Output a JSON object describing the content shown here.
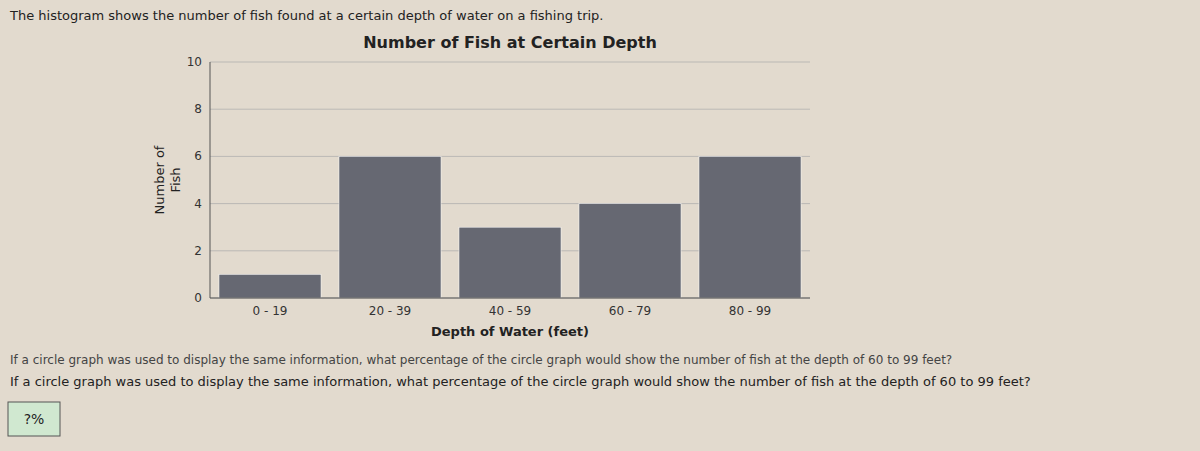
{
  "chart_data": {
    "type": "bar",
    "title": "Number of Fish at Certain Depth",
    "xlabel": "Depth of Water (feet)",
    "ylabel": [
      "Number of",
      "Fish"
    ],
    "categories": [
      "0 - 19",
      "20 - 39",
      "40 - 59",
      "60 - 79",
      "80 - 99"
    ],
    "values": [
      1,
      6,
      3,
      4,
      6
    ],
    "color": "#666872",
    "ylim": [
      0,
      10
    ],
    "yticks": [
      0,
      2,
      4,
      6,
      8,
      10
    ],
    "grid": true,
    "annotations": [
      "The histogram shows the number of fish found at a certain depth of water on a fishing trip.",
      "If a circle graph was used to display the same information, what percentage of the circle graph would show the number of fish at the depth of 60 to 99 feet?",
      "If a circle graph was used to display the same information, what percentage of the circle graph would show the number of fish at the depth of 60 to 99 feet?",
      "?%"
    ]
  }
}
